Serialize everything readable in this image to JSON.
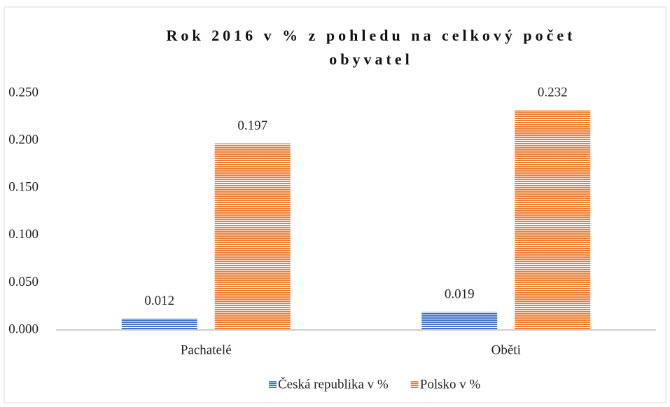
{
  "chart_data": {
    "type": "bar",
    "title": "Rok 2016 v % z pohledu na celkový počet obyvatel",
    "categories": [
      "Pachatelé",
      "Oběti"
    ],
    "series": [
      {
        "name": "Česká republika v %",
        "color": "#4472c4",
        "values": [
          0.012,
          0.019
        ]
      },
      {
        "name": "Polsko v %",
        "color": "#ed7d31",
        "values": [
          0.197,
          0.232
        ]
      }
    ],
    "ylim": [
      0,
      0.25
    ],
    "yticks": [
      {
        "value": 0,
        "label": "0.000"
      },
      {
        "value": 0.05,
        "label": "0.050"
      },
      {
        "value": 0.1,
        "label": "0.100"
      },
      {
        "value": 0.15,
        "label": "0.150"
      },
      {
        "value": 0.2,
        "label": "0.200"
      },
      {
        "value": 0.25,
        "label": "0.250"
      }
    ],
    "grid": false,
    "legend": "bottom"
  }
}
